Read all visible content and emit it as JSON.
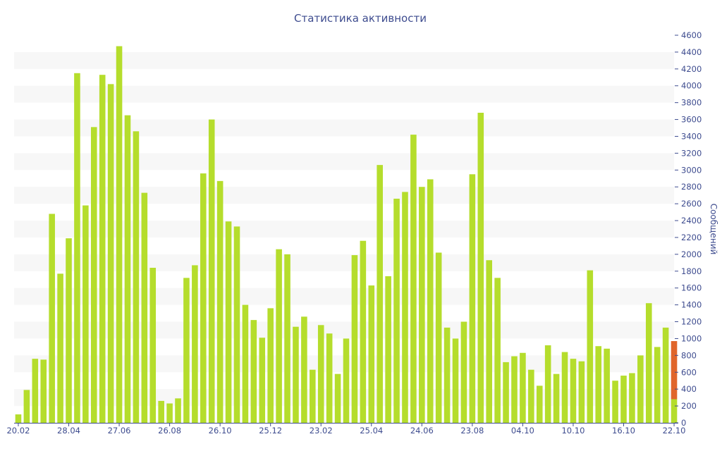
{
  "chart_data": {
    "type": "bar",
    "title": "Статистика активности",
    "ylabel": "Сообщений",
    "xlabel": "",
    "ylim": [
      0,
      4600
    ],
    "y_ticks": [
      0,
      200,
      400,
      600,
      800,
      1000,
      1200,
      1400,
      1600,
      1800,
      2000,
      2200,
      2400,
      2600,
      2800,
      3000,
      3200,
      3400,
      3600,
      3800,
      4000,
      4200,
      4400,
      4600
    ],
    "y_axis_position": "right",
    "grid": "alternating horizontal bands",
    "x_tick_labels": [
      {
        "label": "20.02",
        "index": 0
      },
      {
        "label": "28.04",
        "index": 6
      },
      {
        "label": "27.06",
        "index": 12
      },
      {
        "label": "26.08",
        "index": 18
      },
      {
        "label": "26.10",
        "index": 24
      },
      {
        "label": "25.12",
        "index": 30
      },
      {
        "label": "23.02",
        "index": 36
      },
      {
        "label": "25.04",
        "index": 42
      },
      {
        "label": "24.06",
        "index": 48
      },
      {
        "label": "23.08",
        "index": 54
      },
      {
        "label": "04.10",
        "index": 60
      },
      {
        "label": "10.10",
        "index": 66
      },
      {
        "label": "16.10",
        "index": 72
      },
      {
        "label": "22.10",
        "index": 78
      }
    ],
    "colors": {
      "bar": "#b5dd2c",
      "highlight": "#e0652b",
      "band": "#f7f7f7",
      "text": "#3e4c8f",
      "axis": "#3e4c8f"
    },
    "values": [
      100,
      390,
      760,
      750,
      2480,
      1770,
      2190,
      4150,
      2580,
      3510,
      4130,
      4020,
      4470,
      3650,
      3460,
      2730,
      1840,
      260,
      230,
      290,
      1720,
      1870,
      2960,
      3600,
      2870,
      2390,
      2330,
      1400,
      1220,
      1010,
      1360,
      2060,
      2000,
      1140,
      1260,
      630,
      1160,
      1060,
      580,
      1000,
      1990,
      2160,
      1630,
      3060,
      1740,
      2660,
      2740,
      3420,
      2800,
      2890,
      2020,
      1130,
      1000,
      1200,
      2950,
      3680,
      1930,
      1720,
      720,
      790,
      830,
      630,
      440,
      920,
      580,
      840,
      760,
      730,
      1810,
      910,
      880,
      500,
      560,
      590,
      800,
      1420,
      900,
      1130,
      970
    ],
    "last_bar_base": 280
  }
}
